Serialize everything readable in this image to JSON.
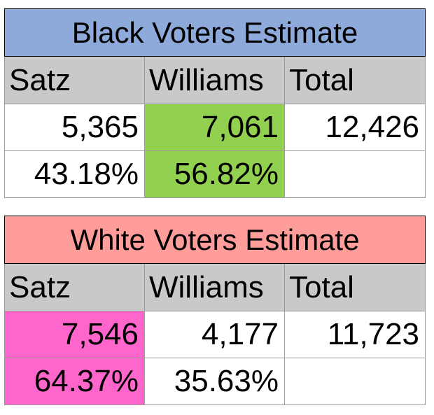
{
  "black": {
    "title": "Black Voters Estimate",
    "headers": [
      "Satz",
      "Williams",
      "Total"
    ],
    "counts": [
      "5,365",
      "7,061",
      "12,426"
    ],
    "percents": [
      "43.18%",
      "56.82%",
      ""
    ]
  },
  "white": {
    "title": "White Voters Estimate",
    "headers": [
      "Satz",
      "Williams",
      "Total"
    ],
    "counts": [
      "7,546",
      "4,177",
      "11,723"
    ],
    "percents": [
      "64.37%",
      "35.63%",
      ""
    ]
  },
  "colors": {
    "black_title_bg": "#8eaadb",
    "white_title_bg": "#ff9d9a",
    "header_bg": "#c9c9c9",
    "black_winner_bg": "#92d050",
    "white_winner_bg": "#ff66cc"
  }
}
